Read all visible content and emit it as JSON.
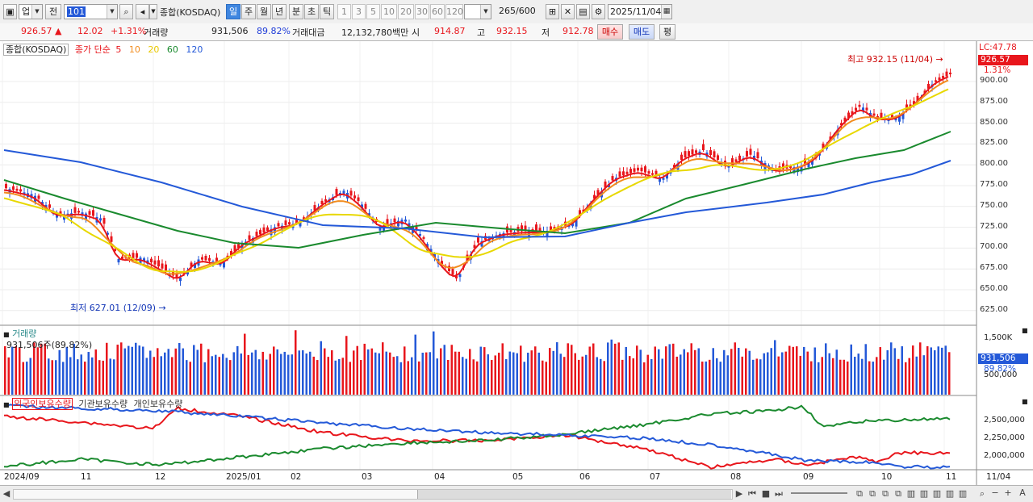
{
  "toolbar": {
    "market_select": "업",
    "prev_label": "전",
    "code_value": "101",
    "index_name": "종합(KOSDAQ)",
    "periods": [
      "일",
      "주",
      "월",
      "년",
      "분",
      "초",
      "틱"
    ],
    "minute_steps": [
      "1",
      "3",
      "5",
      "10",
      "20",
      "30",
      "60",
      "120"
    ],
    "count_value": "265",
    "count_total": "/600",
    "date_value": "2025/11/04"
  },
  "quote": {
    "price": "926.57",
    "change": "12.02",
    "change_pct": "+1.31%",
    "volume_label": "거래량",
    "volume": "931,506",
    "volume_pct": "89.82%",
    "amount_label": "거래대금",
    "amount": "12,132,780백만",
    "open_label": "시",
    "open": "914.87",
    "high_label": "고",
    "high": "932.15",
    "low_label": "저",
    "low": "912.78",
    "buy_label": "매수",
    "sell_label": "매도",
    "eval_label": "평"
  },
  "price_pane": {
    "title": "종합(KOSDAQ)",
    "ma_label": "종가 단순",
    "ma_periods": [
      "5",
      "10",
      "20",
      "60",
      "120"
    ],
    "ma_colors": [
      "#e8161c",
      "#f28c1e",
      "#e8d800",
      "#1a8a2e",
      "#2459d8"
    ],
    "high_annot": "최고 932.15 (11/04)",
    "low_annot": "최저 627.01 (12/09)",
    "lc_label": "LC:47.78",
    "last_price": "926.57",
    "last_pct": "1.31%",
    "yticks": [
      "900.00",
      "875.00",
      "850.00",
      "825.00",
      "800.00",
      "775.00",
      "750.00",
      "725.00",
      "700.00",
      "675.00",
      "650.00",
      "625.00"
    ]
  },
  "volume_pane": {
    "title": "거래량",
    "subtitle": "931,506주(89.82%)",
    "ytick_top": "1,500K",
    "ytick_bottom": "500,000",
    "last_volume": "931,506",
    "last_pct": "89.82%"
  },
  "holding_pane": {
    "legend": [
      "외국인보유수량",
      "기관보유수량",
      "개인보유수량"
    ],
    "colors": [
      "#e8161c",
      "#1a8a2e",
      "#2459d8"
    ],
    "yticks": [
      "2,500,000",
      "2,250,000",
      "2,000,000"
    ]
  },
  "x_axis": {
    "labels": [
      "2024/09",
      "11",
      "12",
      "2025/01",
      "02",
      "03",
      "04",
      "05",
      "06",
      "07",
      "08",
      "09",
      "10",
      "11"
    ],
    "last_date": "11/04"
  }
}
